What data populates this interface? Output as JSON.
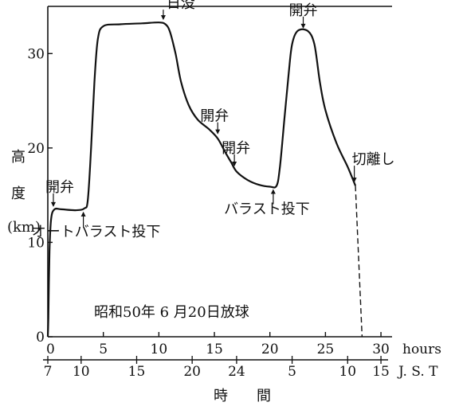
{
  "chart_data": {
    "type": "line",
    "xlabel": "時　　間",
    "ylabel_top": "高",
    "ylabel_bottom": "度",
    "yunit": "(km)",
    "xunit": "hours",
    "jst_unit": "J. S. T",
    "xlim": [
      0,
      31
    ],
    "ylim": [
      0,
      35
    ],
    "x_ticks": [
      0,
      5,
      10,
      15,
      20,
      25,
      30
    ],
    "y_ticks": [
      0,
      10,
      20,
      30
    ],
    "jst_ticks": [
      {
        "x": 0,
        "label": "7"
      },
      {
        "x": 3,
        "label": "10"
      },
      {
        "x": 8,
        "label": "15"
      },
      {
        "x": 13,
        "label": "20"
      },
      {
        "x": 17,
        "label": "24"
      },
      {
        "x": 22,
        "label": "5"
      },
      {
        "x": 27,
        "label": "10"
      },
      {
        "x": 30,
        "label": "15"
      }
    ],
    "series": [
      {
        "points": [
          [
            0,
            0
          ],
          [
            0.05,
            2
          ],
          [
            0.15,
            9
          ],
          [
            0.3,
            12.5
          ],
          [
            0.6,
            13.5
          ],
          [
            1.2,
            13.5
          ],
          [
            2.5,
            13.4
          ],
          [
            3.3,
            13.6
          ],
          [
            3.6,
            14.5
          ],
          [
            3.9,
            20
          ],
          [
            4.2,
            27
          ],
          [
            4.5,
            31.5
          ],
          [
            5.0,
            32.9
          ],
          [
            6.5,
            33.1
          ],
          [
            8.5,
            33.2
          ],
          [
            10.0,
            33.3
          ],
          [
            10.6,
            33.1
          ],
          [
            11.0,
            32.3
          ],
          [
            11.5,
            30
          ],
          [
            12.0,
            27
          ],
          [
            12.7,
            24.5
          ],
          [
            13.5,
            23
          ],
          [
            14.5,
            22
          ],
          [
            15.3,
            21
          ],
          [
            16.0,
            19.5
          ],
          [
            16.5,
            18.5
          ],
          [
            17.0,
            17.5
          ],
          [
            18.0,
            16.6
          ],
          [
            19.0,
            16.1
          ],
          [
            20.0,
            15.9
          ],
          [
            20.6,
            16.0
          ],
          [
            20.9,
            18
          ],
          [
            21.3,
            23
          ],
          [
            21.7,
            28
          ],
          [
            22.0,
            31
          ],
          [
            22.5,
            32.4
          ],
          [
            23.4,
            32.4
          ],
          [
            24.0,
            31
          ],
          [
            24.5,
            27
          ],
          [
            25.0,
            24
          ],
          [
            26.0,
            20.5
          ],
          [
            27.0,
            18
          ],
          [
            27.7,
            16
          ]
        ],
        "dashed_tail": [
          [
            27.7,
            16
          ],
          [
            28.3,
            0
          ]
        ]
      }
    ],
    "annotations": [
      {
        "text": "開弁",
        "x": 0.5,
        "y": 13.5,
        "position": "above"
      },
      {
        "text": "オートバラスト投下",
        "x": 3.2,
        "y": 13.5,
        "position": "below"
      },
      {
        "text": "日没",
        "x": 10.4,
        "y": 33.3,
        "position": "above"
      },
      {
        "text": "開弁",
        "x": 15.3,
        "y": 21.2,
        "position": "above"
      },
      {
        "text": "開弁",
        "x": 16.8,
        "y": 17.8,
        "position": "above"
      },
      {
        "text": "バラスト投下",
        "x": 20.3,
        "y": 15.9,
        "position": "below"
      },
      {
        "text": "開弁",
        "x": 23.0,
        "y": 32.4,
        "position": "above"
      },
      {
        "text": "切離し",
        "x": 27.6,
        "y": 16.1,
        "position": "above"
      }
    ],
    "caption": "昭和50年 6 月20日放球"
  }
}
